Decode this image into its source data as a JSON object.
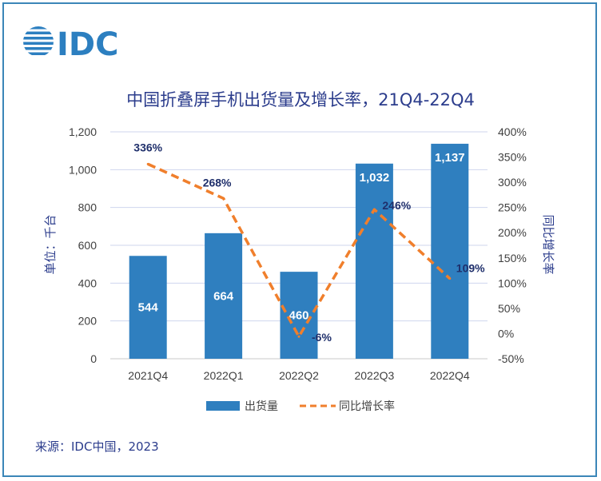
{
  "logo": {
    "text": "IDC"
  },
  "source": "来源：IDC中国，2023",
  "colors": {
    "bar": "#2f7fbf",
    "line": "#f07f2c",
    "title": "#2b3c8c",
    "grid": "#cfd6ee",
    "frame": "#3b86b8"
  },
  "chart_data": {
    "type": "bar",
    "title": "中国折叠屏手机出货量及增长率，21Q4-22Q4",
    "categories": [
      "2021Q4",
      "2022Q1",
      "2022Q2",
      "2022Q3",
      "2022Q4"
    ],
    "series": [
      {
        "name": "出货量",
        "type": "bar",
        "axis": "left",
        "values": [
          544,
          664,
          460,
          1032,
          1137
        ],
        "labels": [
          "544",
          "664",
          "460",
          "1,032",
          "1,137"
        ]
      },
      {
        "name": "同比增长率",
        "type": "line",
        "style": "dashed",
        "axis": "right",
        "values": [
          336,
          268,
          -6,
          246,
          109
        ],
        "labels": [
          "336%",
          "268%",
          "-6%",
          "246%",
          "109%"
        ]
      }
    ],
    "ylabel": "单位：千台",
    "y2label": "同比增长率",
    "ylim": [
      0,
      1200
    ],
    "yticks": [
      0,
      200,
      400,
      600,
      800,
      1000,
      1200
    ],
    "ytick_labels": [
      "0",
      "200",
      "400",
      "600",
      "800",
      "1,000",
      "1,200"
    ],
    "y2lim": [
      -50,
      400
    ],
    "y2ticks": [
      -50,
      0,
      50,
      100,
      150,
      200,
      250,
      300,
      350,
      400
    ],
    "y2tick_labels": [
      "-50%",
      "0%",
      "50%",
      "100%",
      "150%",
      "200%",
      "250%",
      "300%",
      "350%",
      "400%"
    ],
    "grid": true,
    "legend": "bottom-center"
  }
}
